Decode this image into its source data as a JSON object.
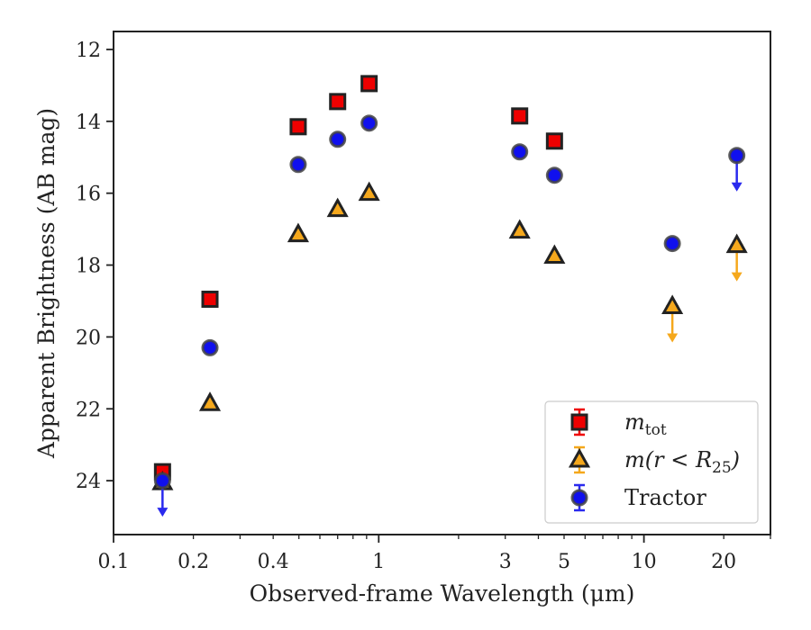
{
  "chart_data": {
    "type": "scatter",
    "xlabel": "Observed-frame Wavelength (μm)",
    "ylabel": "Apparent Brightness (AB mag)",
    "xscale": "log",
    "xlim": [
      0.1,
      30
    ],
    "ylim": [
      25.5,
      11.5
    ],
    "y_inverted": true,
    "xticks": [
      {
        "value": 0.1,
        "label": "0.1"
      },
      {
        "value": 0.2,
        "label": "0.2"
      },
      {
        "value": 0.4,
        "label": "0.4"
      },
      {
        "value": 1,
        "label": "1"
      },
      {
        "value": 3,
        "label": "3"
      },
      {
        "value": 5,
        "label": "5"
      },
      {
        "value": 10,
        "label": "10"
      },
      {
        "value": 20,
        "label": "20"
      }
    ],
    "yticks": [
      {
        "value": 12,
        "label": "12"
      },
      {
        "value": 14,
        "label": "14"
      },
      {
        "value": 16,
        "label": "16"
      },
      {
        "value": 18,
        "label": "18"
      },
      {
        "value": 20,
        "label": "20"
      },
      {
        "value": 22,
        "label": "22"
      },
      {
        "value": 24,
        "label": "24"
      }
    ],
    "grid": false,
    "legend_position": "lower-right",
    "series": [
      {
        "name": "m_tot",
        "legend_base": "m",
        "legend_sub": "tot",
        "legend_rest": "",
        "marker": "square",
        "color": "#ee0000",
        "errcolor": "#ee0000",
        "points": [
          {
            "x": 0.153,
            "y": 23.75
          },
          {
            "x": 0.231,
            "y": 18.95
          },
          {
            "x": 0.497,
            "y": 14.15
          },
          {
            "x": 0.7,
            "y": 13.45
          },
          {
            "x": 0.92,
            "y": 12.95
          },
          {
            "x": 3.4,
            "y": 13.85
          },
          {
            "x": 4.6,
            "y": 14.55
          }
        ]
      },
      {
        "name": "m(r < R25)",
        "legend_base": "m(r < R",
        "legend_sub": "25",
        "legend_rest": ")",
        "marker": "triangle",
        "color": "#f5a81c",
        "errcolor": "#f5a81c",
        "points": [
          {
            "x": 0.153,
            "y": 24.05
          },
          {
            "x": 0.231,
            "y": 21.85
          },
          {
            "x": 0.497,
            "y": 17.15
          },
          {
            "x": 0.7,
            "y": 16.45
          },
          {
            "x": 0.92,
            "y": 16.0
          },
          {
            "x": 3.4,
            "y": 17.05
          },
          {
            "x": 4.6,
            "y": 17.75
          },
          {
            "x": 12.8,
            "y": 19.15,
            "upper_limit": true
          },
          {
            "x": 22.4,
            "y": 17.45,
            "upper_limit": true
          }
        ]
      },
      {
        "name": "Tractor",
        "legend_base": "Tractor",
        "legend_sub": "",
        "legend_rest": "",
        "marker": "circle",
        "color": "#1010ee",
        "errcolor": "#2a2aee",
        "points": [
          {
            "x": 0.153,
            "y": 24.0,
            "upper_limit": true
          },
          {
            "x": 0.231,
            "y": 20.3
          },
          {
            "x": 0.497,
            "y": 15.2
          },
          {
            "x": 0.7,
            "y": 14.5
          },
          {
            "x": 0.92,
            "y": 14.05
          },
          {
            "x": 3.4,
            "y": 14.85
          },
          {
            "x": 4.6,
            "y": 15.5
          },
          {
            "x": 12.8,
            "y": 17.4
          },
          {
            "x": 22.4,
            "y": 14.95,
            "upper_limit": true
          }
        ]
      }
    ]
  }
}
